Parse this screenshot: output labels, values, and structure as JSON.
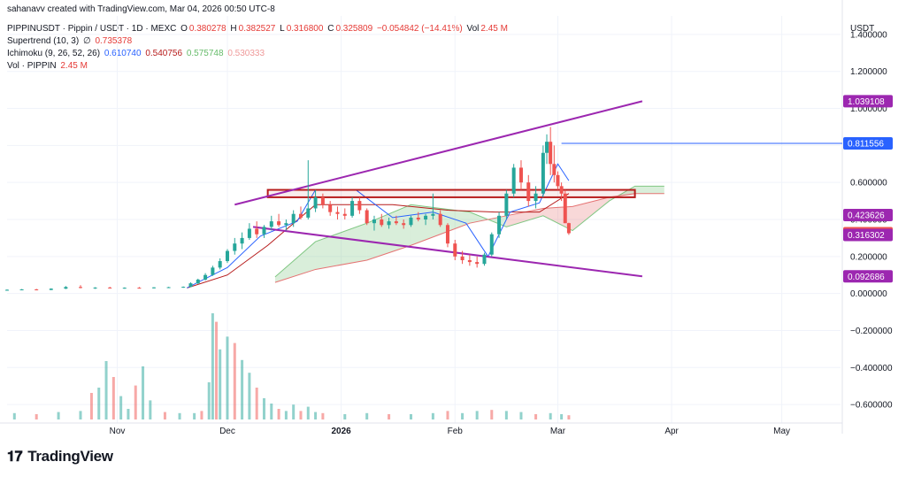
{
  "credit": "sahanavv created with TradingView.com, Mar 04, 2026 00:50 UTC-8",
  "legend": {
    "symbol": "PIPPINUSDT · Pippin / USDT · 1D · MEXC",
    "o_label": "O",
    "o": "0.380278",
    "h_label": "H",
    "h": "0.382527",
    "l_label": "L",
    "l": "0.316800",
    "c_label": "C",
    "c": "0.325809",
    "change": "−0.054842 (−14.41%)",
    "vol_label": "Vol",
    "vol": "2.45 M",
    "supertrend_label": "Supertrend (10, 3)",
    "supertrend_icon": "∅",
    "supertrend": "0.735378",
    "ichimoku_label": "Ichimoku (9, 26, 52, 26)",
    "ichimoku_values": [
      "0.610740",
      "0.540756",
      "0.575748",
      "0.530333"
    ],
    "volume_label": "Vol · PIPPIN",
    "volume": "2.45 M"
  },
  "axis_title": "USDT",
  "logo": {
    "icon": "tradingview-logo",
    "text": "TradingView"
  },
  "colors": {
    "up": "#26a69a",
    "down": "#ef5350",
    "tenkan": "#2962ff",
    "kijun": "#b71c1c",
    "span_a": "#81c784",
    "span_b": "#e57373",
    "trendline": "#9c27b0",
    "zone": "#b71c1c",
    "hline": "#2962ff",
    "grid": "#f0f3fa"
  },
  "chart_data": {
    "type": "candlestick",
    "y_axis": {
      "min": -0.7,
      "max": 1.5,
      "ticks": [
        1.4,
        1.2,
        1.0,
        0.8,
        0.6,
        0.4,
        0.2,
        0.0,
        -0.2,
        -0.4,
        -0.6
      ],
      "tick_labels": [
        "1.400000",
        "1.200000",
        "1.000000",
        "0.800000",
        "0.600000",
        "0.400000",
        "0.200000",
        "0.000000",
        "−0.200000",
        "−0.400000",
        "−0.600000"
      ]
    },
    "x_axis": {
      "labels": [
        "Nov",
        "Dec",
        "2026",
        "Feb",
        "Mar",
        "Apr",
        "May"
      ],
      "label_dates": [
        "2025-11-01",
        "2025-12-01",
        "2026-01-01",
        "2026-02-01",
        "2026-03-01",
        "2026-04-01",
        "2026-05-01"
      ],
      "range": [
        "2025-10-02",
        "2026-05-17"
      ]
    },
    "price_labels": [
      {
        "value": 1.039108,
        "text": "1.039108",
        "color": "#9c27b0"
      },
      {
        "value": 0.811556,
        "text": "0.811556",
        "color": "#2962ff"
      },
      {
        "value": 0.423626,
        "text": "0.423626",
        "color": "#9c27b0"
      },
      {
        "value": 0.325809,
        "text": "0.325809",
        "color": "#ef5350"
      },
      {
        "value": 0.316302,
        "text": "0.316302",
        "color": "#9c27b0"
      },
      {
        "value": 0.092686,
        "text": "0.092686",
        "color": "#9c27b0"
      }
    ],
    "horizontal_line": {
      "value": 0.811556,
      "start": "2026-03-02"
    },
    "resistance_zone": {
      "top": 0.56,
      "bottom": 0.52,
      "start": "2025-12-12",
      "end": "2026-03-22"
    },
    "trendlines": [
      {
        "name": "upper",
        "points": [
          [
            "2025-12-03",
            0.48
          ],
          [
            "2026-03-24",
            1.039108
          ]
        ]
      },
      {
        "name": "lower",
        "points": [
          [
            "2025-12-08",
            0.36
          ],
          [
            "2026-03-24",
            0.092686
          ]
        ]
      }
    ],
    "candles": [
      [
        "2025-10-02",
        0.018,
        0.022,
        0.016,
        0.02
      ],
      [
        "2025-10-06",
        0.02,
        0.024,
        0.018,
        0.022
      ],
      [
        "2025-10-10",
        0.022,
        0.025,
        0.017,
        0.019
      ],
      [
        "2025-10-14",
        0.019,
        0.028,
        0.018,
        0.026
      ],
      [
        "2025-10-18",
        0.026,
        0.04,
        0.024,
        0.035
      ],
      [
        "2025-10-22",
        0.035,
        0.045,
        0.028,
        0.03
      ],
      [
        "2025-10-26",
        0.03,
        0.034,
        0.025,
        0.032
      ],
      [
        "2025-10-30",
        0.032,
        0.036,
        0.028,
        0.03
      ],
      [
        "2025-11-03",
        0.03,
        0.033,
        0.026,
        0.031
      ],
      [
        "2025-11-07",
        0.031,
        0.035,
        0.027,
        0.029
      ],
      [
        "2025-11-11",
        0.029,
        0.034,
        0.027,
        0.033
      ],
      [
        "2025-11-15",
        0.033,
        0.036,
        0.03,
        0.034
      ],
      [
        "2025-11-19",
        0.034,
        0.038,
        0.031,
        0.036
      ],
      [
        "2025-11-21",
        0.036,
        0.06,
        0.034,
        0.055
      ],
      [
        "2025-11-23",
        0.055,
        0.08,
        0.05,
        0.075
      ],
      [
        "2025-11-25",
        0.075,
        0.11,
        0.07,
        0.1
      ],
      [
        "2025-11-27",
        0.1,
        0.15,
        0.095,
        0.14
      ],
      [
        "2025-11-29",
        0.14,
        0.19,
        0.13,
        0.175
      ],
      [
        "2025-12-01",
        0.175,
        0.24,
        0.165,
        0.23
      ],
      [
        "2025-12-03",
        0.23,
        0.3,
        0.21,
        0.27
      ],
      [
        "2025-12-05",
        0.27,
        0.33,
        0.24,
        0.3
      ],
      [
        "2025-12-07",
        0.3,
        0.38,
        0.29,
        0.35
      ],
      [
        "2025-12-09",
        0.35,
        0.39,
        0.3,
        0.32
      ],
      [
        "2025-12-11",
        0.32,
        0.37,
        0.3,
        0.36
      ],
      [
        "2025-12-13",
        0.36,
        0.42,
        0.34,
        0.39
      ],
      [
        "2025-12-15",
        0.39,
        0.43,
        0.36,
        0.37
      ],
      [
        "2025-12-17",
        0.37,
        0.4,
        0.34,
        0.38
      ],
      [
        "2025-12-19",
        0.38,
        0.45,
        0.36,
        0.43
      ],
      [
        "2025-12-21",
        0.43,
        0.47,
        0.4,
        0.41
      ],
      [
        "2025-12-23",
        0.41,
        0.72,
        0.4,
        0.46
      ],
      [
        "2025-12-25",
        0.46,
        0.56,
        0.44,
        0.52
      ],
      [
        "2025-12-27",
        0.52,
        0.54,
        0.46,
        0.48
      ],
      [
        "2025-12-29",
        0.48,
        0.5,
        0.42,
        0.44
      ],
      [
        "2025-12-31",
        0.44,
        0.47,
        0.4,
        0.43
      ],
      [
        "2026-01-02",
        0.43,
        0.46,
        0.4,
        0.42
      ],
      [
        "2026-01-04",
        0.42,
        0.52,
        0.41,
        0.5
      ],
      [
        "2026-01-06",
        0.5,
        0.52,
        0.43,
        0.45
      ],
      [
        "2026-01-08",
        0.45,
        0.46,
        0.37,
        0.38
      ],
      [
        "2026-01-10",
        0.38,
        0.42,
        0.34,
        0.4
      ],
      [
        "2026-01-12",
        0.4,
        0.43,
        0.36,
        0.37
      ],
      [
        "2026-01-14",
        0.37,
        0.41,
        0.35,
        0.39
      ],
      [
        "2026-01-16",
        0.39,
        0.42,
        0.37,
        0.38
      ],
      [
        "2026-01-18",
        0.38,
        0.4,
        0.35,
        0.37
      ],
      [
        "2026-01-20",
        0.37,
        0.42,
        0.36,
        0.41
      ],
      [
        "2026-01-22",
        0.41,
        0.44,
        0.39,
        0.4
      ],
      [
        "2026-01-24",
        0.4,
        0.43,
        0.37,
        0.42
      ],
      [
        "2026-01-26",
        0.42,
        0.54,
        0.4,
        0.43
      ],
      [
        "2026-01-28",
        0.43,
        0.45,
        0.36,
        0.37
      ],
      [
        "2026-01-30",
        0.37,
        0.38,
        0.25,
        0.27
      ],
      [
        "2026-02-01",
        0.27,
        0.29,
        0.18,
        0.2
      ],
      [
        "2026-02-03",
        0.2,
        0.23,
        0.16,
        0.18
      ],
      [
        "2026-02-05",
        0.18,
        0.21,
        0.15,
        0.17
      ],
      [
        "2026-02-07",
        0.17,
        0.2,
        0.14,
        0.16
      ],
      [
        "2026-02-09",
        0.16,
        0.22,
        0.15,
        0.21
      ],
      [
        "2026-02-11",
        0.21,
        0.33,
        0.2,
        0.32
      ],
      [
        "2026-02-13",
        0.32,
        0.44,
        0.3,
        0.42
      ],
      [
        "2026-02-15",
        0.42,
        0.56,
        0.4,
        0.54
      ],
      [
        "2026-02-17",
        0.54,
        0.7,
        0.52,
        0.68
      ],
      [
        "2026-02-19",
        0.68,
        0.72,
        0.56,
        0.6
      ],
      [
        "2026-02-21",
        0.6,
        0.64,
        0.47,
        0.5
      ],
      [
        "2026-02-23",
        0.5,
        0.58,
        0.46,
        0.54
      ],
      [
        "2026-02-25",
        0.54,
        0.8,
        0.52,
        0.76
      ],
      [
        "2026-02-26",
        0.76,
        0.86,
        0.7,
        0.82
      ],
      [
        "2026-02-27",
        0.82,
        0.9,
        0.64,
        0.7
      ],
      [
        "2026-02-28",
        0.7,
        0.8,
        0.6,
        0.64
      ],
      [
        "2026-03-01",
        0.64,
        0.66,
        0.56,
        0.58
      ],
      [
        "2026-03-02",
        0.58,
        0.6,
        0.5,
        0.54
      ],
      [
        "2026-03-03",
        0.54,
        0.56,
        0.38,
        0.38
      ],
      [
        "2026-03-04",
        0.380278,
        0.382527,
        0.3168,
        0.325809
      ]
    ],
    "ichimoku": {
      "tenkan": [
        [
          "2025-11-20",
          0.03
        ],
        [
          "2025-12-01",
          0.14
        ],
        [
          "2025-12-10",
          0.31
        ],
        [
          "2025-12-20",
          0.39
        ],
        [
          "2025-12-25",
          0.56
        ],
        [
          "2026-01-05",
          0.56
        ],
        [
          "2026-01-15",
          0.41
        ],
        [
          "2026-01-26",
          0.44
        ],
        [
          "2026-02-04",
          0.38
        ],
        [
          "2026-02-10",
          0.2
        ],
        [
          "2026-02-16",
          0.44
        ],
        [
          "2026-02-24",
          0.49
        ],
        [
          "2026-03-01",
          0.7
        ],
        [
          "2026-03-04",
          0.61
        ]
      ],
      "kijun": [
        [
          "2025-11-20",
          0.03
        ],
        [
          "2025-12-01",
          0.1
        ],
        [
          "2025-12-12",
          0.26
        ],
        [
          "2025-12-25",
          0.48
        ],
        [
          "2026-01-15",
          0.48
        ],
        [
          "2026-01-30",
          0.45
        ],
        [
          "2026-02-12",
          0.44
        ],
        [
          "2026-02-24",
          0.44
        ],
        [
          "2026-03-04",
          0.54
        ]
      ],
      "span_a": [
        [
          "2025-12-14",
          0.09
        ],
        [
          "2025-12-25",
          0.28
        ],
        [
          "2026-01-08",
          0.38
        ],
        [
          "2026-01-20",
          0.48
        ],
        [
          "2026-02-05",
          0.44
        ],
        [
          "2026-02-15",
          0.36
        ],
        [
          "2026-02-25",
          0.42
        ],
        [
          "2026-03-05",
          0.34
        ],
        [
          "2026-03-15",
          0.5
        ],
        [
          "2026-03-22",
          0.58
        ],
        [
          "2026-03-30",
          0.58
        ]
      ],
      "span_b": [
        [
          "2025-12-14",
          0.06
        ],
        [
          "2025-12-25",
          0.13
        ],
        [
          "2026-01-08",
          0.18
        ],
        [
          "2026-01-20",
          0.26
        ],
        [
          "2026-02-05",
          0.38
        ],
        [
          "2026-02-15",
          0.42
        ],
        [
          "2026-02-25",
          0.46
        ],
        [
          "2026-03-05",
          0.47
        ],
        [
          "2026-03-15",
          0.52
        ],
        [
          "2026-03-22",
          0.54
        ],
        [
          "2026-03-30",
          0.54
        ]
      ]
    },
    "volume": [
      [
        "2025-10-04",
        0.06
      ],
      [
        "2025-10-10",
        0.05
      ],
      [
        "2025-10-16",
        0.07
      ],
      [
        "2025-10-22",
        0.08
      ],
      [
        "2025-10-25",
        0.25
      ],
      [
        "2025-10-27",
        0.3
      ],
      [
        "2025-10-29",
        0.55
      ],
      [
        "2025-10-31",
        0.4
      ],
      [
        "2025-11-02",
        0.22
      ],
      [
        "2025-11-04",
        0.1
      ],
      [
        "2025-11-06",
        0.32
      ],
      [
        "2025-11-08",
        0.5
      ],
      [
        "2025-11-10",
        0.18
      ],
      [
        "2025-11-14",
        0.07
      ],
      [
        "2025-11-18",
        0.06
      ],
      [
        "2025-11-22",
        0.06
      ],
      [
        "2025-11-24",
        0.08
      ],
      [
        "2025-11-26",
        0.35
      ],
      [
        "2025-11-27",
        1.0
      ],
      [
        "2025-11-28",
        0.92
      ],
      [
        "2025-11-29",
        0.66
      ],
      [
        "2025-12-01",
        0.78
      ],
      [
        "2025-12-03",
        0.72
      ],
      [
        "2025-12-05",
        0.56
      ],
      [
        "2025-12-07",
        0.44
      ],
      [
        "2025-12-09",
        0.3
      ],
      [
        "2025-12-11",
        0.2
      ],
      [
        "2025-12-13",
        0.15
      ],
      [
        "2025-12-15",
        0.1
      ],
      [
        "2025-12-17",
        0.08
      ],
      [
        "2025-12-19",
        0.14
      ],
      [
        "2025-12-21",
        0.08
      ],
      [
        "2025-12-23",
        0.12
      ],
      [
        "2025-12-25",
        0.07
      ],
      [
        "2025-12-27",
        0.06
      ],
      [
        "2026-01-02",
        0.05
      ],
      [
        "2026-01-08",
        0.06
      ],
      [
        "2026-01-14",
        0.05
      ],
      [
        "2026-01-20",
        0.05
      ],
      [
        "2026-01-26",
        0.06
      ],
      [
        "2026-01-30",
        0.08
      ],
      [
        "2026-02-03",
        0.06
      ],
      [
        "2026-02-07",
        0.08
      ],
      [
        "2026-02-11",
        0.09
      ],
      [
        "2026-02-15",
        0.08
      ],
      [
        "2026-02-19",
        0.07
      ],
      [
        "2026-02-23",
        0.05
      ],
      [
        "2026-02-27",
        0.06
      ],
      [
        "2026-03-02",
        0.05
      ],
      [
        "2026-03-04",
        0.04
      ]
    ]
  }
}
